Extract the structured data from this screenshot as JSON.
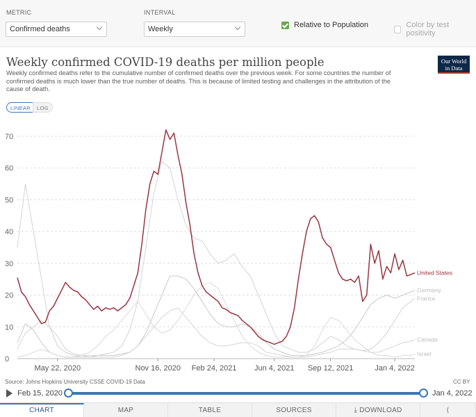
{
  "controls": {
    "metric_label": "METRIC",
    "metric_value": "Confirmed deaths",
    "interval_label": "INTERVAL",
    "interval_value": "Weekly",
    "relative_label": "Relative to Population",
    "color_label": "Color by test positivity"
  },
  "header": {
    "title": "Weekly confirmed COVID-19 deaths per million people",
    "subtitle": "Weekly confirmed deaths refer to the cumulative number of confirmed deaths over the previous week. For some countries the number of confirmed deaths is much lower than the true number of deaths. This is because of limited testing and challenges in the attribution of the cause of death.",
    "logo_line1": "Our World",
    "logo_line2": "in Data"
  },
  "scale": {
    "linear": "LINEAR",
    "log": "LOG"
  },
  "chart_data": {
    "type": "line",
    "title": "Weekly confirmed COVID-19 deaths per million people",
    "xlabel": "",
    "ylabel": "",
    "ylim": [
      0,
      70
    ],
    "xlim": [
      0,
      99
    ],
    "x_unit": "weeks since Mar 15, 2020",
    "y_ticks": [
      0,
      10,
      20,
      30,
      40,
      50,
      60,
      70
    ],
    "x_ticks": [
      {
        "x": 10,
        "label": "May 22, 2020"
      },
      {
        "x": 35,
        "label": "Nov 16, 2020"
      },
      {
        "x": 49,
        "label": "Feb 24, 2021"
      },
      {
        "x": 64,
        "label": "Jun 4, 2021"
      },
      {
        "x": 78,
        "label": "Sep 12, 2021"
      },
      {
        "x": 94,
        "label": "Jan 4, 2022"
      }
    ],
    "series": [
      {
        "name": "United States",
        "color": "#9a3440",
        "highlight": true,
        "x": [
          0,
          1,
          2,
          3,
          4,
          5,
          6,
          7,
          8,
          9,
          10,
          11,
          12,
          13,
          14,
          15,
          16,
          17,
          18,
          19,
          20,
          21,
          22,
          23,
          24,
          25,
          26,
          27,
          28,
          29,
          30,
          31,
          32,
          33,
          34,
          35,
          36,
          37,
          38,
          39,
          40,
          41,
          42,
          43,
          44,
          45,
          46,
          47,
          48,
          49,
          50,
          51,
          52,
          53,
          54,
          55,
          56,
          57,
          58,
          59,
          60,
          61,
          62,
          63,
          64,
          65,
          66,
          67,
          68,
          69,
          70,
          71,
          72,
          73,
          74,
          75,
          76,
          77,
          78,
          79,
          80,
          81,
          82,
          83,
          84,
          85,
          86,
          87,
          88,
          89,
          90,
          91,
          92,
          93,
          94,
          95,
          96,
          97,
          98,
          99
        ],
        "y": [
          25.5,
          21,
          19.5,
          17,
          15,
          13,
          11,
          11.5,
          15,
          16.5,
          19,
          21.5,
          24,
          22.5,
          21.5,
          21,
          19.5,
          18.5,
          17,
          15.5,
          16.5,
          15,
          16,
          15.5,
          16,
          15,
          16,
          17,
          19,
          23,
          27,
          36,
          47,
          55,
          59,
          58,
          65,
          72,
          69,
          71,
          64,
          58,
          49,
          42,
          33,
          27,
          23,
          21,
          20,
          19,
          18,
          16,
          15.5,
          14.5,
          14,
          13.5,
          12,
          11,
          10,
          8.5,
          7,
          6,
          5.5,
          5,
          4.5,
          5,
          5.5,
          7,
          10,
          16,
          25,
          33,
          40,
          44,
          45,
          43,
          38,
          36,
          35,
          31,
          27,
          25,
          24.5,
          25,
          24,
          26,
          18,
          20,
          36,
          30,
          34,
          25,
          29,
          27,
          33,
          28,
          31,
          26,
          26.5,
          27
        ],
        "end_label": "United States"
      },
      {
        "name": "Germany",
        "color": "#c9c9c9",
        "highlight": false,
        "x": [
          0,
          2,
          4,
          6,
          8,
          10,
          12,
          14,
          16,
          18,
          20,
          22,
          24,
          26,
          28,
          30,
          32,
          34,
          36,
          38,
          40,
          42,
          44,
          46,
          48,
          50,
          52,
          54,
          56,
          58,
          60,
          62,
          64,
          66,
          68,
          70,
          72,
          74,
          76,
          78,
          80,
          82,
          84,
          86,
          88,
          90,
          92,
          94,
          96,
          98,
          99
        ],
        "y": [
          5,
          11,
          9,
          5,
          2,
          1,
          0.5,
          0.5,
          0.5,
          0.5,
          1,
          1,
          1,
          1.5,
          2,
          4,
          8,
          14,
          20,
          26,
          26,
          25,
          22,
          18,
          14,
          11,
          10,
          10,
          11,
          10,
          8,
          5,
          3,
          2,
          1,
          1,
          1,
          1.5,
          2,
          3,
          4,
          6,
          9,
          13,
          17,
          19,
          20,
          19,
          20,
          21,
          21.5
        ],
        "end_label": "Germany"
      },
      {
        "name": "France",
        "color": "#d3d3d3",
        "highlight": false,
        "x": [
          0,
          2,
          4,
          6,
          8,
          10,
          12,
          14,
          16,
          18,
          20,
          22,
          24,
          26,
          28,
          30,
          32,
          34,
          36,
          38,
          40,
          42,
          44,
          46,
          48,
          50,
          52,
          54,
          56,
          58,
          60,
          62,
          64,
          66,
          68,
          70,
          72,
          74,
          76,
          78,
          80,
          82,
          84,
          86,
          88,
          90,
          92,
          94,
          96,
          98,
          99
        ],
        "y": [
          35,
          55,
          40,
          25,
          10,
          4,
          2,
          1,
          1,
          1,
          1,
          1.5,
          2,
          4,
          9,
          18,
          35,
          52,
          62,
          60,
          50,
          42,
          38,
          37,
          33,
          30,
          31,
          33,
          29,
          26,
          20,
          14,
          8,
          4,
          3,
          2,
          2,
          3,
          5,
          7,
          6,
          4,
          3,
          2.5,
          3,
          5,
          8,
          12,
          16,
          18,
          19
        ],
        "end_label": "France"
      },
      {
        "name": "Canada",
        "color": "#d5d5d5",
        "highlight": false,
        "x": [
          0,
          2,
          4,
          6,
          8,
          10,
          12,
          14,
          16,
          18,
          20,
          22,
          24,
          26,
          28,
          30,
          32,
          34,
          36,
          38,
          40,
          42,
          44,
          46,
          48,
          50,
          52,
          54,
          56,
          58,
          60,
          62,
          64,
          66,
          68,
          70,
          72,
          74,
          76,
          78,
          80,
          82,
          84,
          86,
          88,
          90,
          92,
          94,
          96,
          98,
          99
        ],
        "y": [
          3,
          8,
          10,
          12,
          10,
          7,
          3,
          1.5,
          1,
          0.5,
          0.5,
          0.5,
          0.5,
          1,
          2,
          4,
          7,
          10,
          13,
          15,
          16,
          13,
          10,
          7,
          5,
          4,
          4,
          4.5,
          5,
          5,
          4,
          2,
          1.5,
          1,
          0.5,
          0.5,
          0.5,
          1,
          1.5,
          2,
          3,
          3,
          3,
          2.5,
          2,
          2,
          3,
          4,
          5,
          5.5,
          6
        ],
        "end_label": "Canada"
      },
      {
        "name": "Israel",
        "color": "#dadada",
        "highlight": false,
        "x": [
          0,
          2,
          4,
          6,
          8,
          10,
          12,
          14,
          16,
          18,
          20,
          22,
          24,
          26,
          28,
          30,
          32,
          34,
          36,
          38,
          40,
          42,
          44,
          46,
          48,
          50,
          52,
          54,
          56,
          58,
          60,
          62,
          64,
          66,
          68,
          70,
          72,
          74,
          76,
          78,
          80,
          82,
          84,
          86,
          88,
          90,
          92,
          94,
          96,
          98,
          99
        ],
        "y": [
          0.5,
          1,
          2,
          3,
          2,
          1,
          0.5,
          0.5,
          1,
          2,
          4,
          7,
          9,
          12,
          15,
          18,
          14,
          10,
          8,
          9,
          12,
          16,
          20,
          23,
          24,
          22,
          17,
          12,
          7,
          4,
          2,
          1,
          0.5,
          0.5,
          0.5,
          0.5,
          1,
          4,
          9,
          13,
          12,
          9,
          6,
          4,
          2,
          1,
          1,
          0.5,
          1,
          1,
          1.5
        ],
        "end_label": "Israel"
      }
    ]
  },
  "source": "Source: Johns Hopkins University CSSE COVID-19 Data",
  "license": "CC BY",
  "timeline": {
    "start": "Feb 15, 2020",
    "end": "Jan 4, 2022"
  },
  "tabs": {
    "chart": "CHART",
    "map": "MAP",
    "table": "TABLE",
    "sources": "SOURCES",
    "download": "DOWNLOAD"
  }
}
